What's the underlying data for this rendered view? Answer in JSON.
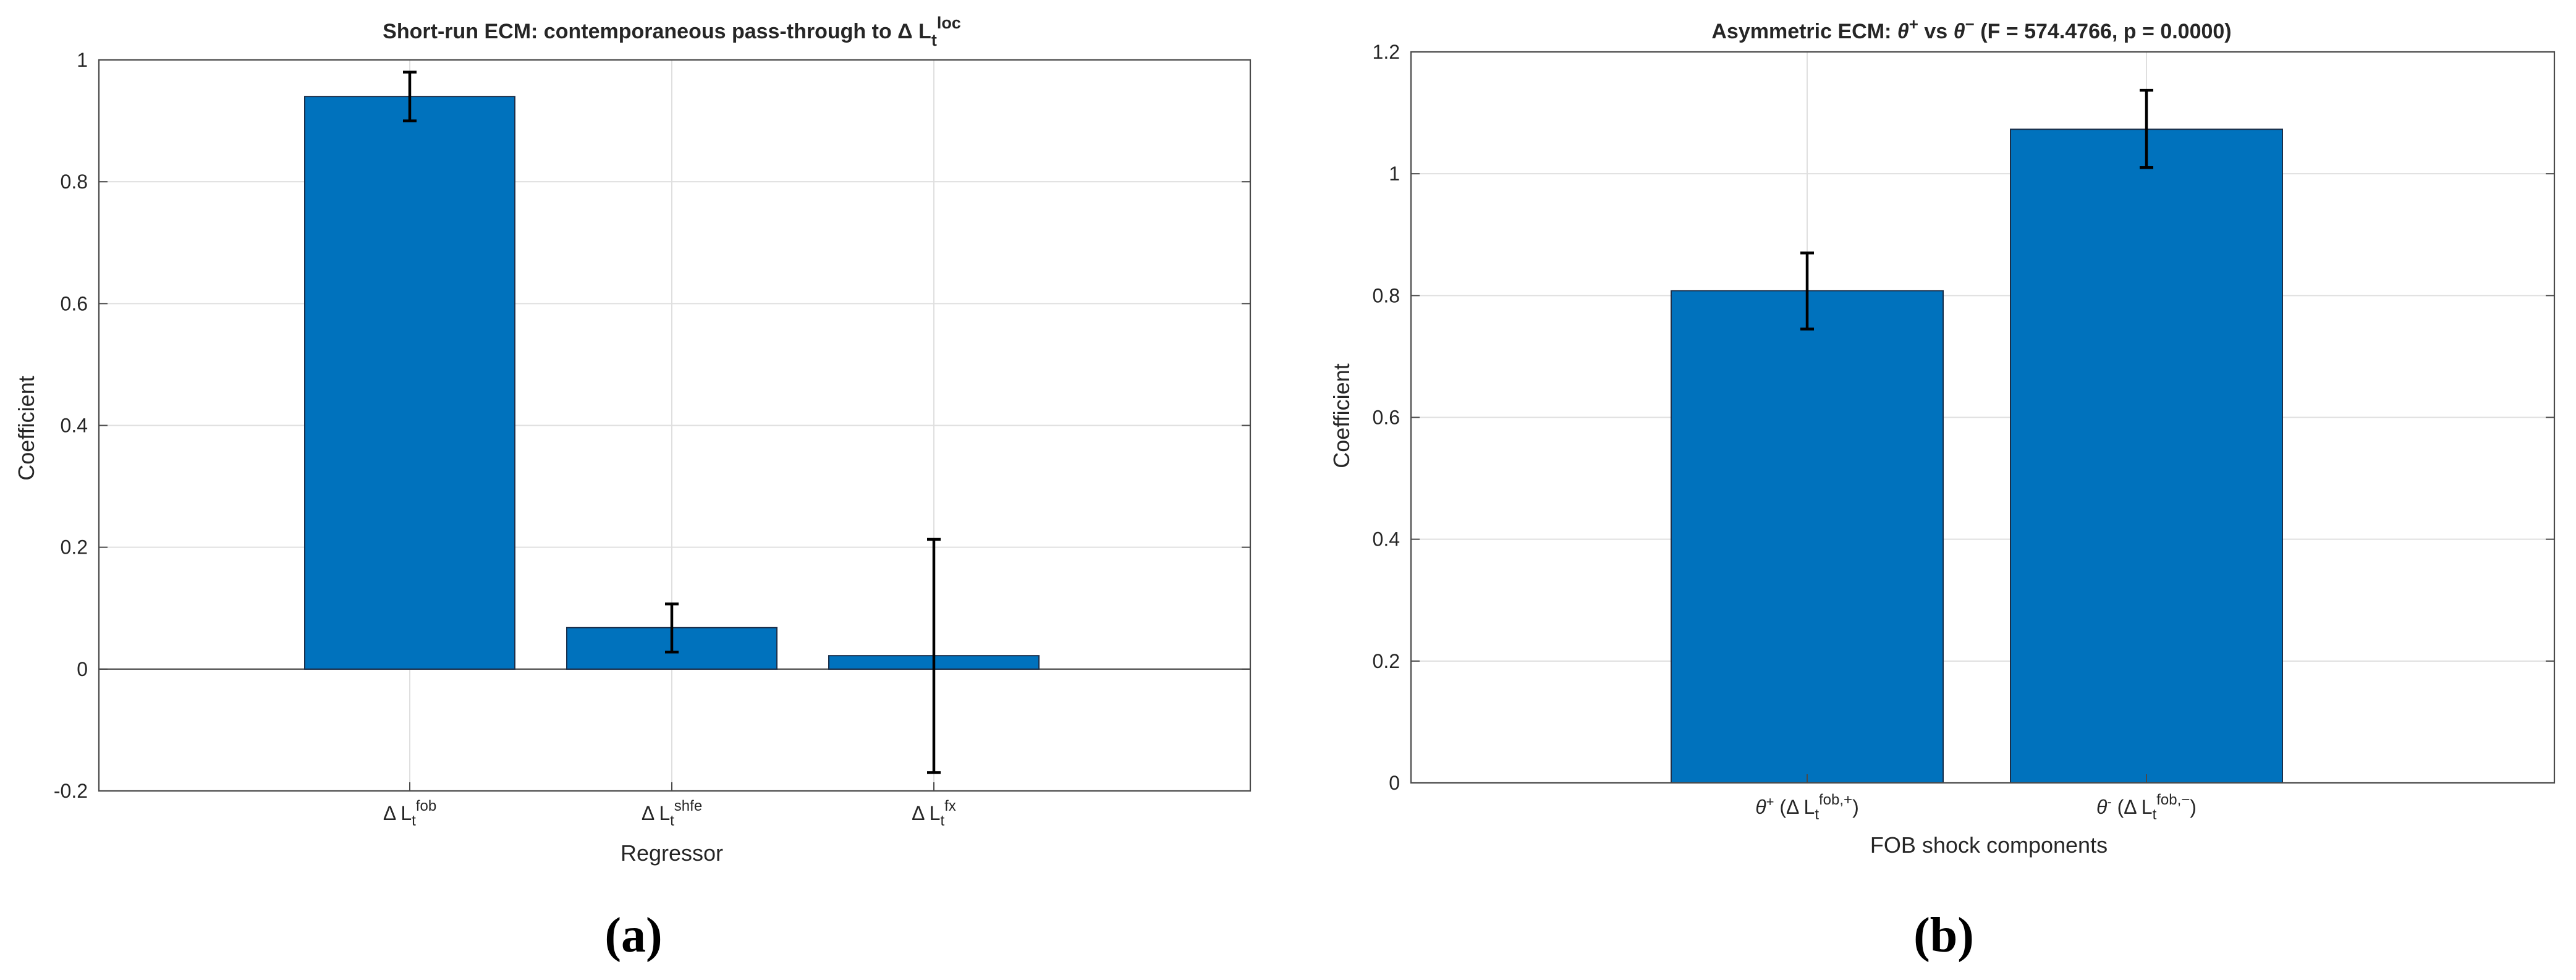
{
  "colors": {
    "bar": "#0072bd",
    "bar_edge": "#1b2f4a",
    "error_bar": "#000000"
  },
  "panels": [
    {
      "label": "(a)"
    },
    {
      "label": "(b)"
    }
  ],
  "chart_data": [
    {
      "type": "bar",
      "title": "Short-run  ECM:  contemporaneous  pass-through  to  Δ  Lₜˡᵒᶜ",
      "title_parts": {
        "prefix": "Short-run  ECM:  contemporaneous  pass-through  to  Δ  L",
        "sub": "t",
        "sup": "loc"
      },
      "xlabel": "Regressor",
      "ylabel": "Coefficient",
      "categories": [
        "Δ  L_t^fob",
        "Δ  L_t^shfe",
        "Δ  L_t^fx"
      ],
      "category_parts": [
        {
          "prefix": "Δ  L",
          "sub": "t",
          "sup": "fob"
        },
        {
          "prefix": "Δ  L",
          "sub": "t",
          "sup": "shfe"
        },
        {
          "prefix": "Δ  L",
          "sub": "t",
          "sup": "fx"
        }
      ],
      "values": [
        0.94,
        0.068,
        0.022
      ],
      "errors": [
        {
          "low": 0.9,
          "high": 0.98
        },
        {
          "low": 0.028,
          "high": 0.107
        },
        {
          "low": -0.17,
          "high": 0.213
        }
      ],
      "ylim": [
        -0.2,
        1
      ],
      "yticks": [
        -0.2,
        0,
        0.2,
        0.4,
        0.6,
        0.8,
        1
      ],
      "ytick_labels": [
        "-0.2",
        "0",
        "0.2",
        "0.4",
        "0.6",
        "0.8",
        "1"
      ],
      "grid": true,
      "zero_line": true
    },
    {
      "type": "bar",
      "title": "Asymmetric  ECM:  θ⁺  vs  θ⁻  (F  =  574.4766,  p  =  0.0000)",
      "title_parts": {
        "a": "Asymmetric  ECM:  ",
        "theta1": "θ",
        "sup1": "+",
        "b": "  vs  ",
        "theta2": "θ",
        "sup2": "−",
        "c": "  (F  =  574.4766,  p  =  0.0000)"
      },
      "xlabel": "FOB shock components",
      "ylabel": "Coefficient",
      "categories": [
        "θ⁺  (Δ  L_t^fob,+)",
        "θ⁻  (Δ  L_t^fob,−)"
      ],
      "category_parts": [
        {
          "theta": "θ",
          "tsup": "+",
          "mid": "  (Δ  L",
          "sub": "t",
          "sup": "fob,+",
          "end": ")"
        },
        {
          "theta": "θ",
          "tsup": "-",
          "mid": "  (Δ  L",
          "sub": "t",
          "sup": "fob,−",
          "end": ")"
        }
      ],
      "values": [
        0.808,
        1.073
      ],
      "errors": [
        {
          "low": 0.745,
          "high": 0.87
        },
        {
          "low": 1.01,
          "high": 1.137
        }
      ],
      "ylim": [
        0,
        1.2
      ],
      "yticks": [
        0,
        0.2,
        0.4,
        0.6,
        0.8,
        1,
        1.2
      ],
      "ytick_labels": [
        "0",
        "0.2",
        "0.4",
        "0.6",
        "0.8",
        "1",
        "1.2"
      ],
      "grid": true,
      "zero_line": false
    }
  ]
}
